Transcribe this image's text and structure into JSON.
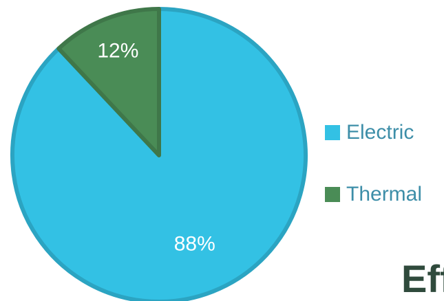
{
  "chart_data": {
    "type": "pie",
    "categories": [
      "Electric",
      "Thermal"
    ],
    "values": [
      88,
      12
    ],
    "value_labels": [
      "88%",
      "12%"
    ],
    "colors": [
      "#33c1e4",
      "#4a8c56"
    ],
    "legend": "right"
  },
  "logo": "Eff"
}
